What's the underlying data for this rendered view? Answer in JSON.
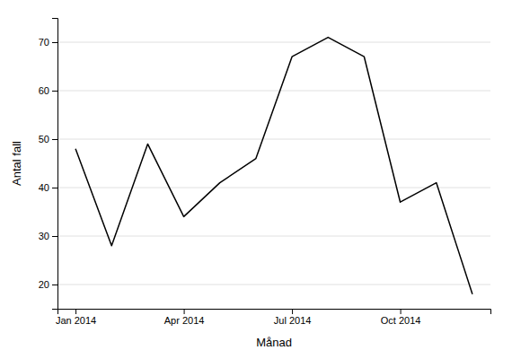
{
  "chart_data": {
    "type": "line",
    "x": [
      1,
      2,
      3,
      4,
      5,
      6,
      7,
      8,
      9,
      10,
      11,
      12
    ],
    "values": [
      48,
      28,
      49,
      34,
      41,
      46,
      67,
      71,
      67,
      37,
      41,
      18
    ],
    "color": "#000000",
    "xlabel": "Månad",
    "ylabel": "Antal fall",
    "xlim": [
      0.5,
      12.5
    ],
    "xticks": [
      {
        "value": 1,
        "label": "Jan 2014"
      },
      {
        "value": 4,
        "label": "Apr 2014"
      },
      {
        "value": 7,
        "label": "Jul 2014"
      },
      {
        "value": 10,
        "label": "Oct 2014"
      }
    ],
    "ylim": [
      15,
      75
    ],
    "yticks": [
      20,
      30,
      40,
      50,
      60,
      70
    ],
    "grid": "y"
  }
}
